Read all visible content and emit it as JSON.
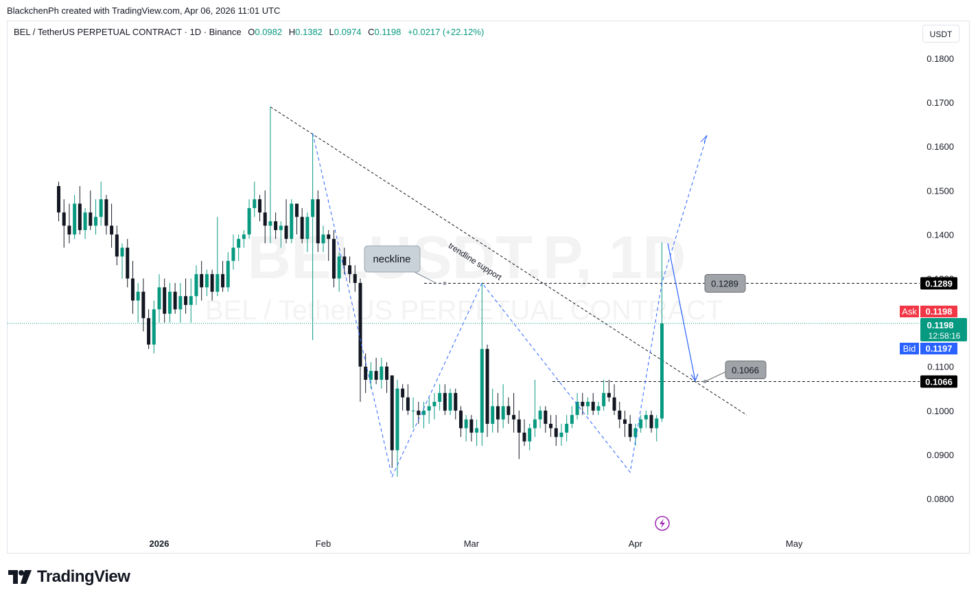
{
  "credit": "BlackchenPh created with TradingView.com, Apr 06, 2026 11:01 UTC",
  "legend": {
    "symbol": "BEL / TetherUS PERPETUAL CONTRACT · 1D · Binance",
    "open_label": "O",
    "open": "0.0982",
    "high_label": "H",
    "high": "0.1382",
    "low_label": "L",
    "low": "0.0974",
    "close_label": "C",
    "close": "0.1198",
    "change": "+0.0217 (+22.12%)"
  },
  "currency": "USDT",
  "watermark": {
    "line1": "BELUSDT.P, 1D",
    "line2": "BEL / TetherUS PERPETUAL CONTRACT"
  },
  "brand": "TradingView",
  "colors": {
    "up": "#089981",
    "down": "#131722",
    "accent_blue": "#2962ff",
    "ask": "#f23645",
    "last": "#089981"
  },
  "chart_data": {
    "type": "candlestick",
    "symbol": "BELUSDT.P",
    "interval": "1D",
    "y_ticks": [
      0.18,
      0.17,
      0.16,
      0.15,
      0.14,
      0.13,
      0.12,
      0.11,
      0.1,
      0.09,
      0.08
    ],
    "y_tick_labels": [
      "0.1800",
      "0.1700",
      "0.1600",
      "0.1500",
      "0.1400",
      "0.1300",
      "0.1200",
      "0.1100",
      "0.1000",
      "0.0900",
      "0.0800"
    ],
    "x_ticks": [
      "2026",
      "Feb",
      "Mar",
      "Apr",
      "May"
    ],
    "x_tick_dates": [
      "2026-01-01",
      "2026-02-01",
      "2026-03-01",
      "2026-04-01",
      "2026-05-01"
    ],
    "ohlc": [
      {
        "date": "2025-12-13",
        "o": 0.151,
        "h": 0.152,
        "l": 0.143,
        "c": 0.145
      },
      {
        "date": "2025-12-14",
        "o": 0.145,
        "h": 0.148,
        "l": 0.137,
        "c": 0.142
      },
      {
        "date": "2025-12-15",
        "o": 0.142,
        "h": 0.147,
        "l": 0.138,
        "c": 0.14
      },
      {
        "date": "2025-12-16",
        "o": 0.14,
        "h": 0.149,
        "l": 0.139,
        "c": 0.147
      },
      {
        "date": "2025-12-17",
        "o": 0.147,
        "h": 0.151,
        "l": 0.14,
        "c": 0.141
      },
      {
        "date": "2025-12-18",
        "o": 0.141,
        "h": 0.146,
        "l": 0.139,
        "c": 0.145
      },
      {
        "date": "2025-12-19",
        "o": 0.145,
        "h": 0.15,
        "l": 0.141,
        "c": 0.142
      },
      {
        "date": "2025-12-20",
        "o": 0.142,
        "h": 0.148,
        "l": 0.14,
        "c": 0.144
      },
      {
        "date": "2025-12-21",
        "o": 0.144,
        "h": 0.152,
        "l": 0.142,
        "c": 0.148
      },
      {
        "date": "2025-12-22",
        "o": 0.148,
        "h": 0.149,
        "l": 0.14,
        "c": 0.142
      },
      {
        "date": "2025-12-23",
        "o": 0.142,
        "h": 0.147,
        "l": 0.137,
        "c": 0.14
      },
      {
        "date": "2025-12-24",
        "o": 0.14,
        "h": 0.142,
        "l": 0.133,
        "c": 0.135
      },
      {
        "date": "2025-12-25",
        "o": 0.135,
        "h": 0.138,
        "l": 0.13,
        "c": 0.137
      },
      {
        "date": "2025-12-26",
        "o": 0.137,
        "h": 0.139,
        "l": 0.128,
        "c": 0.13
      },
      {
        "date": "2025-12-27",
        "o": 0.13,
        "h": 0.134,
        "l": 0.122,
        "c": 0.125
      },
      {
        "date": "2025-12-28",
        "o": 0.125,
        "h": 0.129,
        "l": 0.12,
        "c": 0.127
      },
      {
        "date": "2025-12-29",
        "o": 0.127,
        "h": 0.13,
        "l": 0.118,
        "c": 0.121
      },
      {
        "date": "2025-12-30",
        "o": 0.121,
        "h": 0.123,
        "l": 0.114,
        "c": 0.115
      },
      {
        "date": "2025-12-31",
        "o": 0.115,
        "h": 0.125,
        "l": 0.113,
        "c": 0.123
      },
      {
        "date": "2026-01-01",
        "o": 0.123,
        "h": 0.131,
        "l": 0.12,
        "c": 0.128
      },
      {
        "date": "2026-01-02",
        "o": 0.128,
        "h": 0.13,
        "l": 0.12,
        "c": 0.122
      },
      {
        "date": "2026-01-03",
        "o": 0.122,
        "h": 0.129,
        "l": 0.12,
        "c": 0.127
      },
      {
        "date": "2026-01-04",
        "o": 0.127,
        "h": 0.129,
        "l": 0.122,
        "c": 0.123
      },
      {
        "date": "2026-01-05",
        "o": 0.123,
        "h": 0.129,
        "l": 0.12,
        "c": 0.126
      },
      {
        "date": "2026-01-06",
        "o": 0.126,
        "h": 0.13,
        "l": 0.122,
        "c": 0.124
      },
      {
        "date": "2026-01-07",
        "o": 0.124,
        "h": 0.13,
        "l": 0.12,
        "c": 0.126
      },
      {
        "date": "2026-01-08",
        "o": 0.126,
        "h": 0.133,
        "l": 0.124,
        "c": 0.131
      },
      {
        "date": "2026-01-09",
        "o": 0.131,
        "h": 0.134,
        "l": 0.125,
        "c": 0.128
      },
      {
        "date": "2026-01-10",
        "o": 0.128,
        "h": 0.132,
        "l": 0.126,
        "c": 0.131
      },
      {
        "date": "2026-01-11",
        "o": 0.131,
        "h": 0.132,
        "l": 0.125,
        "c": 0.127
      },
      {
        "date": "2026-01-12",
        "o": 0.127,
        "h": 0.144,
        "l": 0.126,
        "c": 0.131
      },
      {
        "date": "2026-01-13",
        "o": 0.131,
        "h": 0.134,
        "l": 0.127,
        "c": 0.128
      },
      {
        "date": "2026-01-14",
        "o": 0.128,
        "h": 0.136,
        "l": 0.127,
        "c": 0.134
      },
      {
        "date": "2026-01-15",
        "o": 0.134,
        "h": 0.14,
        "l": 0.132,
        "c": 0.137
      },
      {
        "date": "2026-01-16",
        "o": 0.137,
        "h": 0.14,
        "l": 0.134,
        "c": 0.139
      },
      {
        "date": "2026-01-17",
        "o": 0.139,
        "h": 0.141,
        "l": 0.137,
        "c": 0.14
      },
      {
        "date": "2026-01-18",
        "o": 0.14,
        "h": 0.148,
        "l": 0.139,
        "c": 0.146
      },
      {
        "date": "2026-01-19",
        "o": 0.146,
        "h": 0.152,
        "l": 0.144,
        "c": 0.148
      },
      {
        "date": "2026-01-20",
        "o": 0.148,
        "h": 0.149,
        "l": 0.143,
        "c": 0.145
      },
      {
        "date": "2026-01-21",
        "o": 0.145,
        "h": 0.15,
        "l": 0.138,
        "c": 0.142
      },
      {
        "date": "2026-01-22",
        "o": 0.142,
        "h": 0.169,
        "l": 0.138,
        "c": 0.143
      },
      {
        "date": "2026-01-23",
        "o": 0.143,
        "h": 0.145,
        "l": 0.139,
        "c": 0.141
      },
      {
        "date": "2026-01-24",
        "o": 0.141,
        "h": 0.143,
        "l": 0.137,
        "c": 0.142
      },
      {
        "date": "2026-01-25",
        "o": 0.142,
        "h": 0.148,
        "l": 0.138,
        "c": 0.139
      },
      {
        "date": "2026-01-26",
        "o": 0.139,
        "h": 0.148,
        "l": 0.138,
        "c": 0.147
      },
      {
        "date": "2026-01-27",
        "o": 0.147,
        "h": 0.147,
        "l": 0.14,
        "c": 0.144
      },
      {
        "date": "2026-01-28",
        "o": 0.144,
        "h": 0.146,
        "l": 0.138,
        "c": 0.139
      },
      {
        "date": "2026-01-29",
        "o": 0.139,
        "h": 0.145,
        "l": 0.136,
        "c": 0.144
      },
      {
        "date": "2026-01-30",
        "o": 0.144,
        "h": 0.163,
        "l": 0.116,
        "c": 0.148
      },
      {
        "date": "2026-01-31",
        "o": 0.148,
        "h": 0.15,
        "l": 0.136,
        "c": 0.138
      }
    ],
    "ohlc_2": [
      {
        "date": "2026-02-01",
        "o": 0.138,
        "h": 0.142,
        "l": 0.136,
        "c": 0.14
      },
      {
        "date": "2026-02-02",
        "o": 0.14,
        "h": 0.141,
        "l": 0.134,
        "c": 0.139
      },
      {
        "date": "2026-02-03",
        "o": 0.139,
        "h": 0.141,
        "l": 0.128,
        "c": 0.13
      },
      {
        "date": "2026-02-04",
        "o": 0.13,
        "h": 0.136,
        "l": 0.127,
        "c": 0.135
      },
      {
        "date": "2026-02-05",
        "o": 0.135,
        "h": 0.137,
        "l": 0.131,
        "c": 0.133
      },
      {
        "date": "2026-02-06",
        "o": 0.133,
        "h": 0.135,
        "l": 0.129,
        "c": 0.131
      },
      {
        "date": "2026-02-07",
        "o": 0.131,
        "h": 0.133,
        "l": 0.127,
        "c": 0.129
      },
      {
        "date": "2026-02-08",
        "o": 0.129,
        "h": 0.13,
        "l": 0.102,
        "c": 0.11
      },
      {
        "date": "2026-02-09",
        "o": 0.11,
        "h": 0.113,
        "l": 0.104,
        "c": 0.107
      },
      {
        "date": "2026-02-10",
        "o": 0.107,
        "h": 0.111,
        "l": 0.105,
        "c": 0.109
      },
      {
        "date": "2026-02-11",
        "o": 0.109,
        "h": 0.112,
        "l": 0.106,
        "c": 0.107
      },
      {
        "date": "2026-02-12",
        "o": 0.107,
        "h": 0.112,
        "l": 0.105,
        "c": 0.11
      },
      {
        "date": "2026-02-13",
        "o": 0.11,
        "h": 0.111,
        "l": 0.104,
        "c": 0.107
      },
      {
        "date": "2026-02-14",
        "o": 0.108,
        "h": 0.108,
        "l": 0.087,
        "c": 0.091
      },
      {
        "date": "2026-02-15",
        "o": 0.091,
        "h": 0.107,
        "l": 0.085,
        "c": 0.105
      },
      {
        "date": "2026-02-16",
        "o": 0.105,
        "h": 0.106,
        "l": 0.1,
        "c": 0.103
      },
      {
        "date": "2026-02-17",
        "o": 0.103,
        "h": 0.106,
        "l": 0.099,
        "c": 0.1
      },
      {
        "date": "2026-02-18",
        "o": 0.1,
        "h": 0.103,
        "l": 0.096,
        "c": 0.1
      },
      {
        "date": "2026-02-19",
        "o": 0.1,
        "h": 0.102,
        "l": 0.097,
        "c": 0.099
      },
      {
        "date": "2026-02-20",
        "o": 0.099,
        "h": 0.102,
        "l": 0.096,
        "c": 0.1
      },
      {
        "date": "2026-02-21",
        "o": 0.1,
        "h": 0.103,
        "l": 0.097,
        "c": 0.101
      },
      {
        "date": "2026-02-22",
        "o": 0.101,
        "h": 0.104,
        "l": 0.098,
        "c": 0.102
      },
      {
        "date": "2026-02-23",
        "o": 0.102,
        "h": 0.106,
        "l": 0.1,
        "c": 0.104
      },
      {
        "date": "2026-02-24",
        "o": 0.104,
        "h": 0.106,
        "l": 0.099,
        "c": 0.1
      },
      {
        "date": "2026-02-25",
        "o": 0.1,
        "h": 0.105,
        "l": 0.099,
        "c": 0.104
      },
      {
        "date": "2026-02-26",
        "o": 0.104,
        "h": 0.105,
        "l": 0.098,
        "c": 0.1
      },
      {
        "date": "2026-02-27",
        "o": 0.1,
        "h": 0.101,
        "l": 0.094,
        "c": 0.096
      },
      {
        "date": "2026-02-28",
        "o": 0.096,
        "h": 0.099,
        "l": 0.093,
        "c": 0.098
      },
      {
        "date": "2026-03-01",
        "o": 0.098,
        "h": 0.099,
        "l": 0.093,
        "c": 0.095
      },
      {
        "date": "2026-03-02",
        "o": 0.095,
        "h": 0.098,
        "l": 0.092,
        "c": 0.096
      },
      {
        "date": "2026-03-03",
        "o": 0.095,
        "h": 0.129,
        "l": 0.092,
        "c": 0.114
      },
      {
        "date": "2026-03-04",
        "o": 0.114,
        "h": 0.115,
        "l": 0.094,
        "c": 0.097
      },
      {
        "date": "2026-03-05",
        "o": 0.097,
        "h": 0.105,
        "l": 0.095,
        "c": 0.101
      },
      {
        "date": "2026-03-06",
        "o": 0.101,
        "h": 0.104,
        "l": 0.095,
        "c": 0.098
      },
      {
        "date": "2026-03-07",
        "o": 0.098,
        "h": 0.106,
        "l": 0.096,
        "c": 0.101
      },
      {
        "date": "2026-03-08",
        "o": 0.101,
        "h": 0.103,
        "l": 0.097,
        "c": 0.099
      },
      {
        "date": "2026-03-09",
        "o": 0.099,
        "h": 0.104,
        "l": 0.095,
        "c": 0.098
      },
      {
        "date": "2026-03-10",
        "o": 0.098,
        "h": 0.1,
        "l": 0.089,
        "c": 0.095
      },
      {
        "date": "2026-03-11",
        "o": 0.095,
        "h": 0.098,
        "l": 0.092,
        "c": 0.093
      },
      {
        "date": "2026-03-12",
        "o": 0.093,
        "h": 0.097,
        "l": 0.091,
        "c": 0.096
      },
      {
        "date": "2026-03-13",
        "o": 0.096,
        "h": 0.107,
        "l": 0.094,
        "c": 0.098
      },
      {
        "date": "2026-03-14",
        "o": 0.098,
        "h": 0.101,
        "l": 0.096,
        "c": 0.1
      },
      {
        "date": "2026-03-15",
        "o": 0.1,
        "h": 0.101,
        "l": 0.095,
        "c": 0.097
      },
      {
        "date": "2026-03-16",
        "o": 0.097,
        "h": 0.099,
        "l": 0.094,
        "c": 0.096
      },
      {
        "date": "2026-03-17",
        "o": 0.096,
        "h": 0.099,
        "l": 0.092,
        "c": 0.094
      },
      {
        "date": "2026-03-18",
        "o": 0.094,
        "h": 0.097,
        "l": 0.092,
        "c": 0.095
      },
      {
        "date": "2026-03-19",
        "o": 0.095,
        "h": 0.099,
        "l": 0.093,
        "c": 0.097
      },
      {
        "date": "2026-03-20",
        "o": 0.097,
        "h": 0.101,
        "l": 0.096,
        "c": 0.099
      }
    ],
    "ohlc_3": [
      {
        "date": "2026-03-21",
        "o": 0.099,
        "h": 0.104,
        "l": 0.098,
        "c": 0.102
      },
      {
        "date": "2026-03-22",
        "o": 0.102,
        "h": 0.104,
        "l": 0.099,
        "c": 0.101
      },
      {
        "date": "2026-03-23",
        "o": 0.101,
        "h": 0.103,
        "l": 0.099,
        "c": 0.102
      },
      {
        "date": "2026-03-24",
        "o": 0.102,
        "h": 0.104,
        "l": 0.099,
        "c": 0.1
      },
      {
        "date": "2026-03-25",
        "o": 0.1,
        "h": 0.102,
        "l": 0.099,
        "c": 0.101
      },
      {
        "date": "2026-03-26",
        "o": 0.101,
        "h": 0.107,
        "l": 0.1,
        "c": 0.104
      },
      {
        "date": "2026-03-27",
        "o": 0.104,
        "h": 0.107,
        "l": 0.102,
        "c": 0.103
      },
      {
        "date": "2026-03-28",
        "o": 0.103,
        "h": 0.106,
        "l": 0.099,
        "c": 0.1
      },
      {
        "date": "2026-03-29",
        "o": 0.1,
        "h": 0.102,
        "l": 0.096,
        "c": 0.098
      },
      {
        "date": "2026-03-30",
        "o": 0.098,
        "h": 0.1,
        "l": 0.094,
        "c": 0.097
      },
      {
        "date": "2026-03-31",
        "o": 0.097,
        "h": 0.099,
        "l": 0.093,
        "c": 0.094
      },
      {
        "date": "2026-04-01",
        "o": 0.094,
        "h": 0.097,
        "l": 0.092,
        "c": 0.096
      },
      {
        "date": "2026-04-02",
        "o": 0.096,
        "h": 0.099,
        "l": 0.095,
        "c": 0.098
      },
      {
        "date": "2026-04-03",
        "o": 0.098,
        "h": 0.1,
        "l": 0.096,
        "c": 0.099
      },
      {
        "date": "2026-04-04",
        "o": 0.099,
        "h": 0.1,
        "l": 0.095,
        "c": 0.096
      },
      {
        "date": "2026-04-05",
        "o": 0.096,
        "h": 0.099,
        "l": 0.093,
        "c": 0.0982
      },
      {
        "date": "2026-04-06",
        "o": 0.0982,
        "h": 0.1382,
        "l": 0.0974,
        "c": 0.1198
      }
    ],
    "levels": [
      {
        "price": 0.1289,
        "label": "0.1289"
      },
      {
        "price": 0.1066,
        "label": "0.1066"
      }
    ],
    "price_tags": {
      "ask_label": "Ask",
      "ask": "0.1198",
      "last": "0.1198",
      "countdown": "12:58:16",
      "bid_label": "Bid",
      "bid": "0.1197"
    },
    "annotations": {
      "neckline": "neckline",
      "trendline": "trendline support"
    }
  }
}
